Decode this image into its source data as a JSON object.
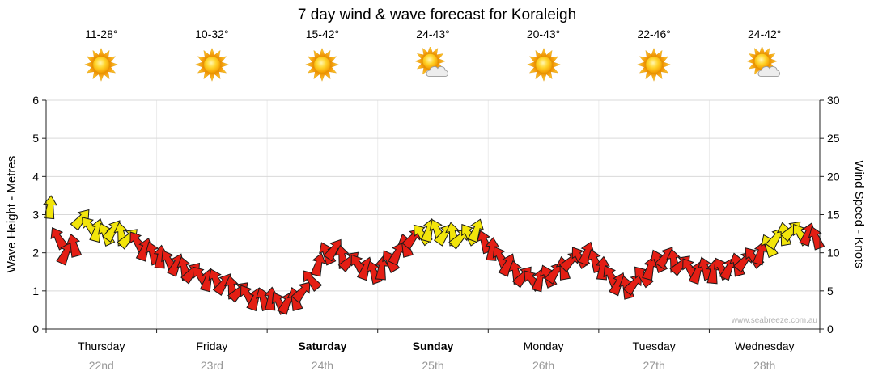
{
  "title": "7 day wind & wave forecast for Koraleigh",
  "watermark": "www.seabreeze.com.au",
  "axes": {
    "left_label": "Wave Height - Metres",
    "right_label": "Wind Speed - Knots",
    "left_ticks": [
      0,
      1,
      2,
      3,
      4,
      5,
      6
    ],
    "right_ticks": [
      0,
      5,
      10,
      15,
      20,
      25,
      30
    ]
  },
  "days": [
    {
      "name": "Thursday",
      "date": "22nd",
      "temp": "11-28°",
      "icon": "sunny",
      "weekend": false
    },
    {
      "name": "Friday",
      "date": "23rd",
      "temp": "10-32°",
      "icon": "sunny",
      "weekend": false
    },
    {
      "name": "Saturday",
      "date": "24th",
      "temp": "15-42°",
      "icon": "sunny",
      "weekend": true
    },
    {
      "name": "Sunday",
      "date": "25th",
      "temp": "24-43°",
      "icon": "partly-cloudy",
      "weekend": true
    },
    {
      "name": "Monday",
      "date": "26th",
      "temp": "20-43°",
      "icon": "sunny",
      "weekend": false
    },
    {
      "name": "Tuesday",
      "date": "27th",
      "temp": "22-46°",
      "icon": "sunny",
      "weekend": false
    },
    {
      "name": "Wednesday",
      "date": "28th",
      "temp": "24-42°",
      "icon": "partly-cloudy",
      "weekend": false
    }
  ],
  "chart_data": {
    "type": "wind-arrows",
    "title": "7 day wind & wave forecast for Koraleigh",
    "ylabel_left": "Wave Height - Metres",
    "ylabel_right": "Wind Speed - Knots",
    "ylim_wave": [
      0,
      6
    ],
    "ylim_knots": [
      0,
      30
    ],
    "grid": true,
    "points_per_day": 14,
    "categories": [
      "Thursday 22nd",
      "Friday 23rd",
      "Saturday 24th",
      "Sunday 25th",
      "Monday 26th",
      "Tuesday 27th",
      "Wednesday 28th"
    ],
    "knots": [
      16,
      12,
      10,
      11,
      14.5,
      13.5,
      13,
      12.5,
      13,
      12.5,
      12,
      11.5,
      10.5,
      10,
      9.5,
      9,
      8.5,
      8,
      7.5,
      7,
      6.5,
      6.5,
      6,
      5.5,
      5,
      4.5,
      4,
      4,
      4,
      3.5,
      3.5,
      4,
      5,
      6.5,
      8.5,
      10,
      10.5,
      9.5,
      9,
      8.5,
      8,
      7.5,
      8,
      9,
      10,
      11,
      12,
      12.5,
      13,
      13,
      12.5,
      12.5,
      12,
      12.5,
      13,
      11.5,
      10.5,
      9.5,
      8.5,
      7.5,
      7,
      6.5,
      6.5,
      7,
      7.5,
      8,
      9,
      9.5,
      10,
      9,
      8,
      7,
      6,
      5.5,
      6,
      7,
      8,
      9,
      9.5,
      9,
      8.5,
      8,
      7.5,
      8,
      7.5,
      8,
      8,
      8.5,
      9,
      9.5,
      10,
      11,
      12,
      12.5,
      13,
      12.5,
      12.5,
      12
    ],
    "colors": [
      "y",
      "r",
      "r",
      "r",
      "y",
      "y",
      "y",
      "y",
      "y",
      "y",
      "y",
      "r",
      "r",
      "r",
      "r",
      "r",
      "r",
      "r",
      "r",
      "r",
      "r",
      "r",
      "r",
      "r",
      "r",
      "r",
      "r",
      "r",
      "r",
      "r",
      "r",
      "r",
      "r",
      "r",
      "r",
      "r",
      "r",
      "r",
      "r",
      "r",
      "r",
      "r",
      "r",
      "r",
      "r",
      "r",
      "r",
      "y",
      "y",
      "y",
      "y",
      "y",
      "y",
      "y",
      "y",
      "r",
      "r",
      "r",
      "r",
      "r",
      "r",
      "r",
      "r",
      "r",
      "r",
      "r",
      "r",
      "r",
      "r",
      "r",
      "r",
      "r",
      "r",
      "r",
      "r",
      "r",
      "r",
      "r",
      "r",
      "r",
      "r",
      "r",
      "r",
      "r",
      "r",
      "r",
      "r",
      "r",
      "r",
      "r",
      "r",
      "y",
      "y",
      "y",
      "y",
      "y",
      "r",
      "r"
    ],
    "dirs_pattern": [
      5,
      -30,
      25,
      -15,
      40,
      -40,
      15,
      -25,
      35,
      -10,
      45,
      -35,
      20,
      -20
    ],
    "colors_hex": {
      "y": "#f2e50b",
      "r": "#e41e14"
    },
    "outline_hex": "#1a1a1a"
  }
}
